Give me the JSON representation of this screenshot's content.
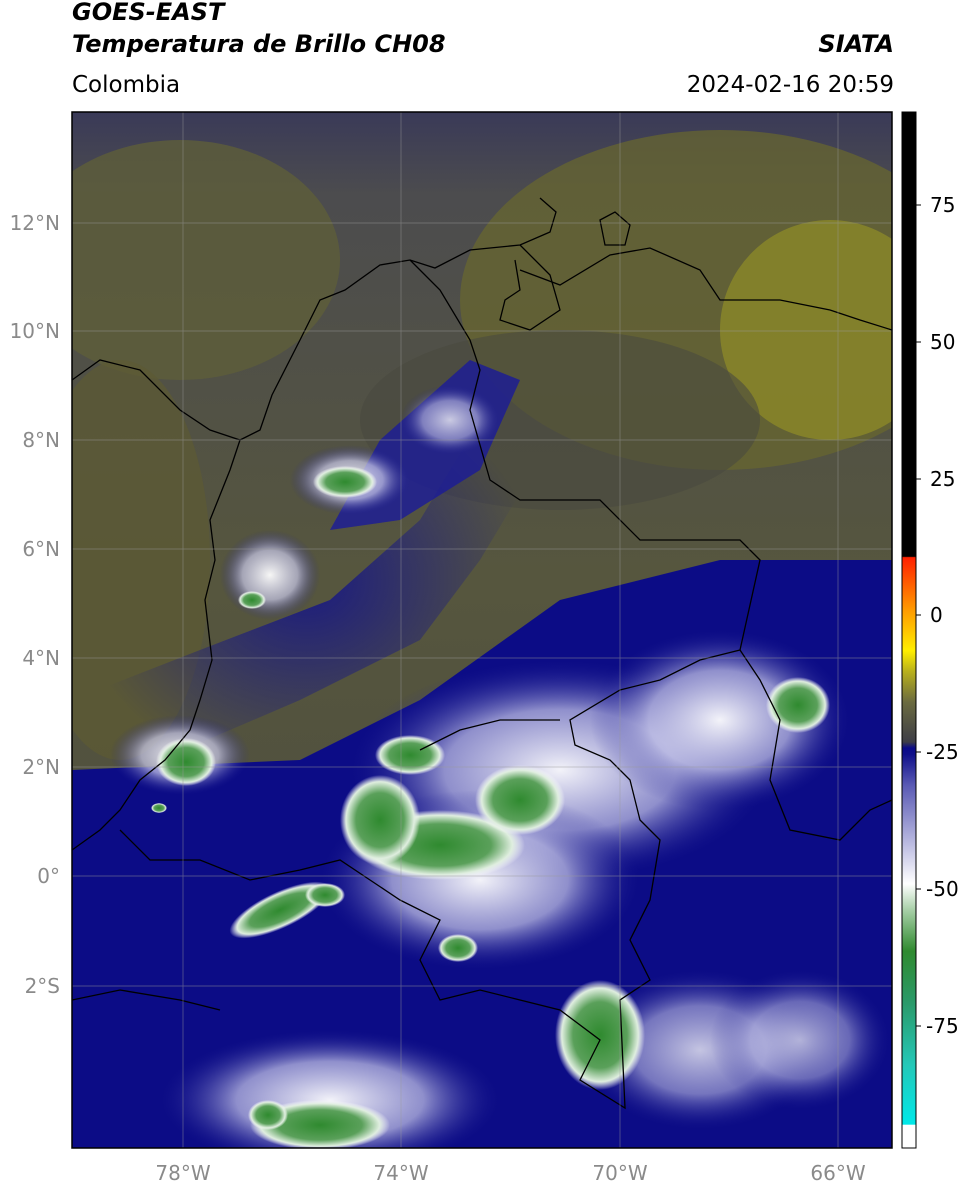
{
  "header": {
    "satellite": "GOES-EAST",
    "product": "Temperatura de Brillo CH08",
    "region": "Colombia",
    "organization": "SIATA",
    "datetime": "2024-02-16 20:59"
  },
  "map": {
    "lat_ticks": [
      "12°N",
      "10°N",
      "8°N",
      "6°N",
      "4°N",
      "2°N",
      "0°",
      "2°S"
    ],
    "lon_ticks": [
      "78°W",
      "74°W",
      "70°W",
      "66°W"
    ],
    "extent": {
      "lon_min": -80,
      "lon_max": -65,
      "lat_min": -5,
      "lat_max": 14
    }
  },
  "colorbar": {
    "ticks": [
      "75",
      "50",
      "25",
      "0",
      "-25",
      "-50",
      "-75"
    ],
    "range": [
      -95,
      90
    ],
    "colors": {
      "black": "#000000",
      "red": "#ff2000",
      "orange": "#ff9900",
      "yellow": "#ffee00",
      "olive": "#b8b01c",
      "gray": "#3e3e46",
      "navy": "#0a0a88",
      "lavender": "#9a9ad0",
      "white": "#ffffff",
      "green": "#2f8a2f",
      "teal": "#2ab89a",
      "cyan": "#00e8e8"
    }
  }
}
